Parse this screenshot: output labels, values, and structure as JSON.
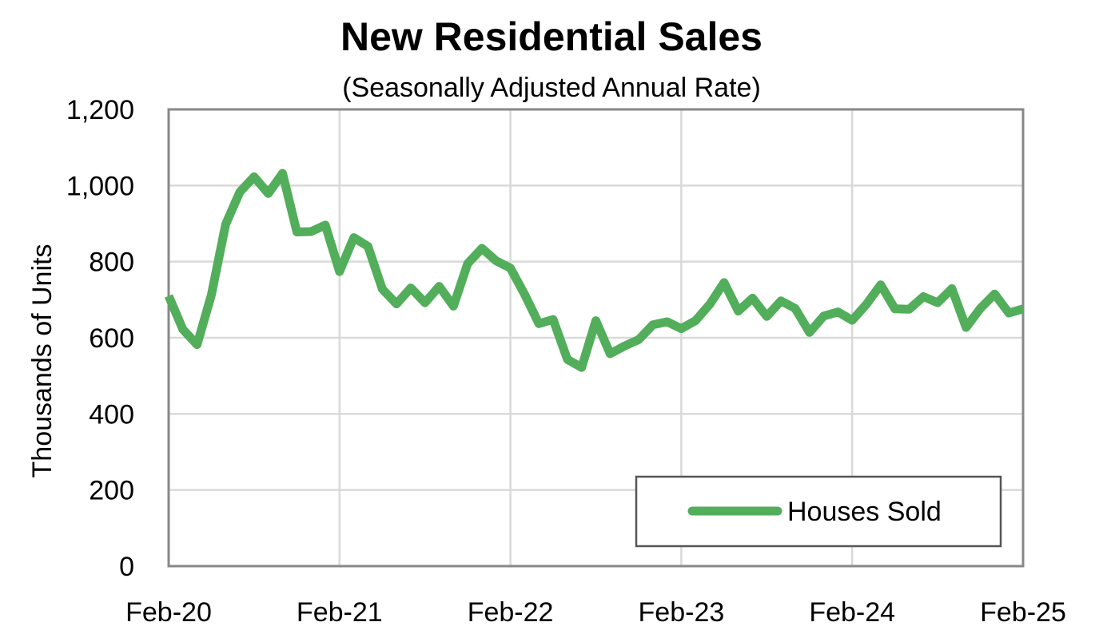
{
  "chart_data": {
    "type": "line",
    "title": "New Residential Sales",
    "subtitle": "(Seasonally Adjusted Annual Rate)",
    "xlabel": "",
    "ylabel": "Thousands of Units",
    "ylim": [
      0,
      1200
    ],
    "y_ticks": [
      0,
      200,
      400,
      600,
      800,
      1000,
      1200
    ],
    "y_tick_labels": [
      "0",
      "200",
      "400",
      "600",
      "800",
      "1,000",
      "1,200"
    ],
    "x_ticks": [
      "Feb-20",
      "Feb-21",
      "Feb-22",
      "Feb-23",
      "Feb-24",
      "Feb-25"
    ],
    "grid": true,
    "legend_position": "bottom-right",
    "series": [
      {
        "name": "Houses Sold",
        "color": "#52AE5A",
        "start": "Feb-20",
        "frequency": "monthly",
        "values": [
          710,
          622,
          582,
          712,
          898,
          983,
          1023,
          979,
          1032,
          878,
          879,
          896,
          774,
          863,
          840,
          728,
          689,
          731,
          692,
          735,
          683,
          795,
          835,
          802,
          783,
          714,
          637,
          648,
          543,
          522,
          645,
          558,
          578,
          595,
          634,
          642,
          624,
          645,
          688,
          745,
          670,
          704,
          656,
          697,
          677,
          614,
          657,
          668,
          646,
          688,
          739,
          676,
          675,
          708,
          692,
          729,
          627,
          677,
          715,
          665,
          676
        ]
      }
    ]
  }
}
